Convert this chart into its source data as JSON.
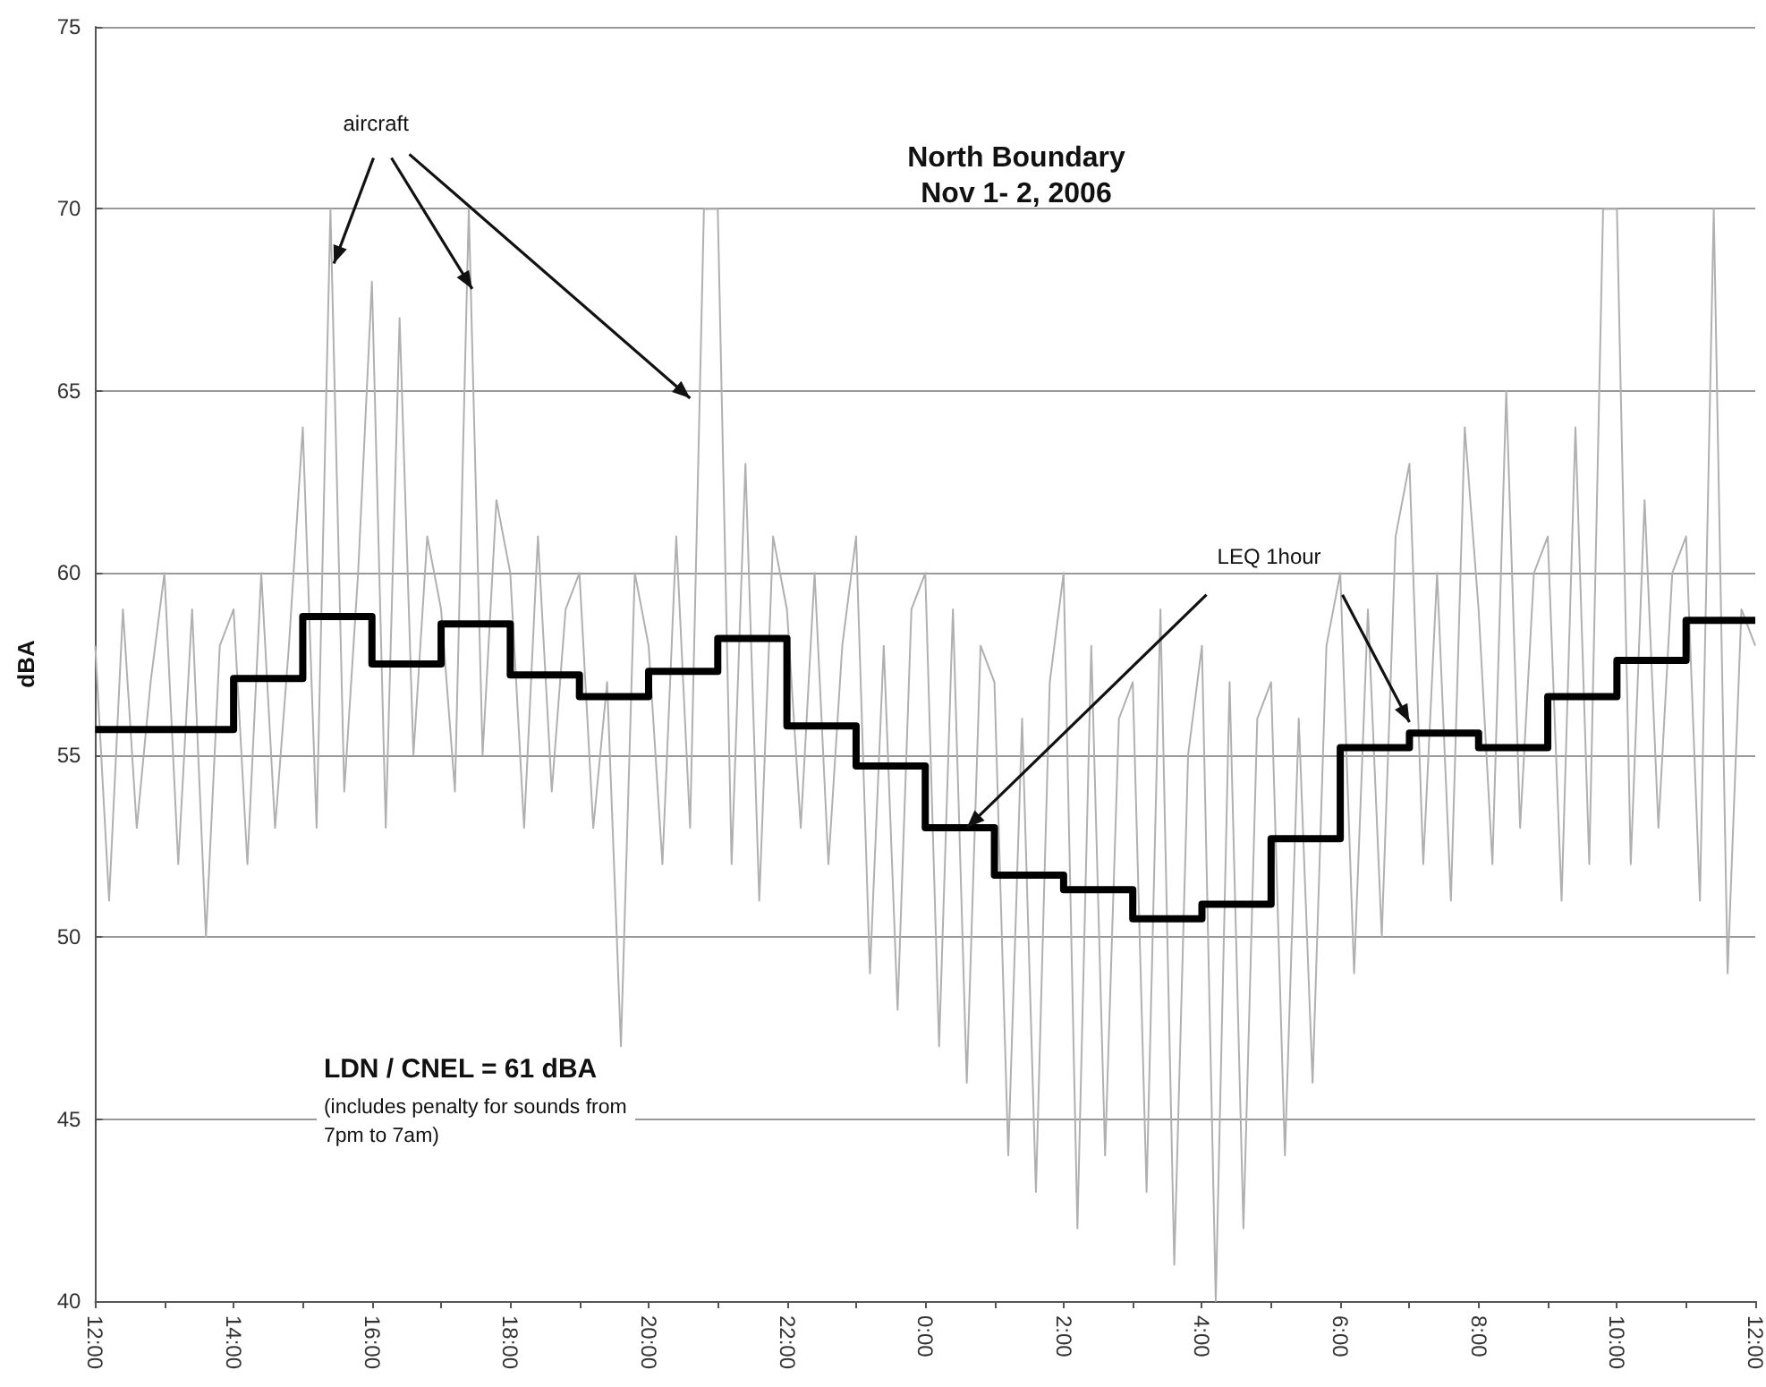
{
  "chart_data": {
    "type": "line",
    "title": "North Boundary",
    "subtitle": "Nov 1- 2, 2006",
    "ylabel": "dBA",
    "annotations": [
      {
        "text": "aircraft",
        "x": "2006-11-01T15:27",
        "y": 68.5
      },
      {
        "text": "LEQ 1hour",
        "x": "2006-11-02T00:36",
        "y": 53.0
      },
      "LDN / CNEL = 61 dBA",
      "(includes penalty for sounds from 7pm to 7am)"
    ],
    "xlim": [
      "2006-11-01T12:00",
      "2006-11-02T12:00"
    ],
    "xticks": [
      {
        "value": "2006-11-01T12:00",
        "label": "12:00"
      },
      {
        "value": "2006-11-01T13:00",
        "label": null
      },
      {
        "value": "2006-11-01T14:00",
        "label": "14:00"
      },
      {
        "value": "2006-11-01T15:00",
        "label": null
      },
      {
        "value": "2006-11-01T16:00",
        "label": "16:00"
      },
      {
        "value": "2006-11-01T17:00",
        "label": null
      },
      {
        "value": "2006-11-01T18:00",
        "label": "18:00"
      },
      {
        "value": "2006-11-01T19:00",
        "label": null
      },
      {
        "value": "2006-11-01T20:00",
        "label": "20:00"
      },
      {
        "value": "2006-11-01T21:00",
        "label": null
      },
      {
        "value": "2006-11-01T22:00",
        "label": "22:00"
      },
      {
        "value": "2006-11-01T23:00",
        "label": null
      },
      {
        "value": "2006-11-02T00:00",
        "label": "0:00"
      },
      {
        "value": "2006-11-02T01:00",
        "label": null
      },
      {
        "value": "2006-11-02T02:00",
        "label": "2:00"
      },
      {
        "value": "2006-11-02T03:00",
        "label": null
      },
      {
        "value": "2006-11-02T04:00",
        "label": "4:00"
      },
      {
        "value": "2006-11-02T05:00",
        "label": null
      },
      {
        "value": "2006-11-02T06:00",
        "label": "6:00"
      },
      {
        "value": "2006-11-02T07:00",
        "label": null
      },
      {
        "value": "2006-11-02T08:00",
        "label": "8:00"
      },
      {
        "value": "2006-11-02T09:00",
        "label": null
      },
      {
        "value": "2006-11-02T10:00",
        "label": "10:00"
      },
      {
        "value": "2006-11-02T11:00",
        "label": null
      },
      {
        "value": "2006-11-02T12:00",
        "label": "12:00"
      }
    ],
    "ylim": [
      40,
      75
    ],
    "yticks": [
      40,
      45,
      50,
      55,
      60,
      65,
      70,
      75
    ],
    "grid": "y",
    "series": [
      {
        "color": "#b0b0b0",
        "x": [
          "2006-11-01T12:00",
          "2006-11-01T12:12",
          "2006-11-01T12:24",
          "2006-11-01T12:36",
          "2006-11-01T12:48",
          "2006-11-01T13:00",
          "2006-11-01T13:12",
          "2006-11-01T13:24",
          "2006-11-01T13:36",
          "2006-11-01T13:48",
          "2006-11-01T14:00",
          "2006-11-01T14:12",
          "2006-11-01T14:24",
          "2006-11-01T14:36",
          "2006-11-01T14:48",
          "2006-11-01T15:00",
          "2006-11-01T15:12",
          "2006-11-01T15:24",
          "2006-11-01T15:36",
          "2006-11-01T15:48",
          "2006-11-01T16:00",
          "2006-11-01T16:12",
          "2006-11-01T16:24",
          "2006-11-01T16:36",
          "2006-11-01T16:48",
          "2006-11-01T17:00",
          "2006-11-01T17:12",
          "2006-11-01T17:24",
          "2006-11-01T17:36",
          "2006-11-01T17:48",
          "2006-11-01T18:00",
          "2006-11-01T18:12",
          "2006-11-01T18:24",
          "2006-11-01T18:36",
          "2006-11-01T18:48",
          "2006-11-01T19:00",
          "2006-11-01T19:12",
          "2006-11-01T19:24",
          "2006-11-01T19:36",
          "2006-11-01T19:48",
          "2006-11-01T20:00",
          "2006-11-01T20:12",
          "2006-11-01T20:24",
          "2006-11-01T20:36",
          "2006-11-01T20:48",
          "2006-11-01T21:00",
          "2006-11-01T21:12",
          "2006-11-01T21:24",
          "2006-11-01T21:36",
          "2006-11-01T21:48",
          "2006-11-01T22:00",
          "2006-11-01T22:12",
          "2006-11-01T22:24",
          "2006-11-01T22:36",
          "2006-11-01T22:48",
          "2006-11-01T23:00",
          "2006-11-01T23:12",
          "2006-11-01T23:24",
          "2006-11-01T23:36",
          "2006-11-01T23:48",
          "2006-11-02T00:00",
          "2006-11-02T00:12",
          "2006-11-02T00:24",
          "2006-11-02T00:36",
          "2006-11-02T00:48",
          "2006-11-02T01:00",
          "2006-11-02T01:12",
          "2006-11-02T01:24",
          "2006-11-02T01:36",
          "2006-11-02T01:48",
          "2006-11-02T02:00",
          "2006-11-02T02:12",
          "2006-11-02T02:24",
          "2006-11-02T02:36",
          "2006-11-02T02:48",
          "2006-11-02T03:00",
          "2006-11-02T03:12",
          "2006-11-02T03:24",
          "2006-11-02T03:36",
          "2006-11-02T03:48",
          "2006-11-02T04:00",
          "2006-11-02T04:12",
          "2006-11-02T04:24",
          "2006-11-02T04:36",
          "2006-11-02T04:48",
          "2006-11-02T05:00",
          "2006-11-02T05:12",
          "2006-11-02T05:24",
          "2006-11-02T05:36",
          "2006-11-02T05:48",
          "2006-11-02T06:00",
          "2006-11-02T06:12",
          "2006-11-02T06:24",
          "2006-11-02T06:36",
          "2006-11-02T06:48",
          "2006-11-02T07:00",
          "2006-11-02T07:12",
          "2006-11-02T07:24",
          "2006-11-02T07:36",
          "2006-11-02T07:48",
          "2006-11-02T08:00",
          "2006-11-02T08:12",
          "2006-11-02T08:24",
          "2006-11-02T08:36",
          "2006-11-02T08:48",
          "2006-11-02T09:00",
          "2006-11-02T09:12",
          "2006-11-02T09:24",
          "2006-11-02T09:36",
          "2006-11-02T09:48",
          "2006-11-02T10:00",
          "2006-11-02T10:12",
          "2006-11-02T10:24",
          "2006-11-02T10:36",
          "2006-11-02T10:48",
          "2006-11-02T11:00",
          "2006-11-02T11:12",
          "2006-11-02T11:24",
          "2006-11-02T11:36",
          "2006-11-02T11:48",
          "2006-11-02T12:00"
        ],
        "values": [
          58,
          51,
          59,
          53,
          57,
          60,
          52,
          59,
          50,
          58,
          59,
          52,
          60,
          53,
          58,
          64,
          53,
          70,
          54,
          60,
          68,
          53,
          67,
          55,
          61,
          59,
          54,
          70,
          55,
          62,
          60,
          53,
          61,
          54,
          59,
          60,
          53,
          57,
          47,
          60,
          58,
          52,
          61,
          53,
          70,
          70,
          52,
          63,
          51,
          61,
          59,
          53,
          60,
          52,
          58,
          61,
          49,
          58,
          48,
          59,
          60,
          47,
          59,
          46,
          58,
          57,
          44,
          56,
          43,
          57,
          60,
          42,
          58,
          44,
          56,
          57,
          43,
          59,
          41,
          55,
          58,
          40,
          57,
          42,
          56,
          57,
          44,
          56,
          46,
          58,
          60,
          49,
          59,
          50,
          61,
          63,
          52,
          60,
          51,
          64,
          59,
          52,
          65,
          53,
          60,
          61,
          51,
          64,
          52,
          70,
          70,
          52,
          62,
          53,
          60,
          61,
          51,
          70,
          49,
          59,
          58
        ]
      },
      {
        "type": "step",
        "color": "#000000",
        "x": [
          "2006-11-01T12:00",
          "2006-11-01T13:00",
          "2006-11-01T14:00",
          "2006-11-01T15:00",
          "2006-11-01T16:00",
          "2006-11-01T17:00",
          "2006-11-01T18:00",
          "2006-11-01T19:00",
          "2006-11-01T20:00",
          "2006-11-01T21:00",
          "2006-11-01T22:00",
          "2006-11-01T23:00",
          "2006-11-02T00:00",
          "2006-11-02T01:00",
          "2006-11-02T02:00",
          "2006-11-02T03:00",
          "2006-11-02T04:00",
          "2006-11-02T05:00",
          "2006-11-02T06:00",
          "2006-11-02T07:00",
          "2006-11-02T08:00",
          "2006-11-02T09:00",
          "2006-11-02T10:00",
          "2006-11-02T11:00",
          "2006-11-02T12:00"
        ],
        "values": [
          55.7,
          55.7,
          57.1,
          58.8,
          57.5,
          58.6,
          57.2,
          56.6,
          57.3,
          58.2,
          55.8,
          54.7,
          53.0,
          51.7,
          51.3,
          50.5,
          50.9,
          52.7,
          55.2,
          55.6,
          55.2,
          56.6,
          57.6,
          58.7,
          58.7
        ]
      }
    ]
  }
}
